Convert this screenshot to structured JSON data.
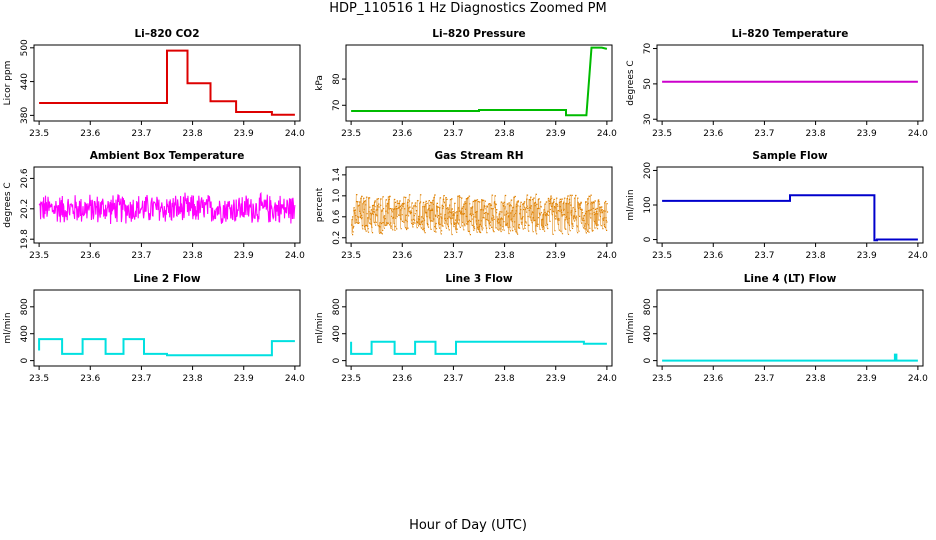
{
  "main_title": "HDP_110516  1 Hz Diagnostics Zoomed PM",
  "x_axis_title": "Hour of Day (UTC)",
  "chart_data": [
    {
      "type": "line",
      "title": "Li–820 CO2",
      "ylabel": "Licor ppm",
      "color": "#dd0000",
      "xlim": [
        23.49,
        24.01
      ],
      "ylim": [
        370,
        505
      ],
      "xticks": [
        "23.5",
        "23.6",
        "23.7",
        "23.8",
        "23.9",
        "24.0"
      ],
      "yticks": [
        "380",
        "440",
        "500"
      ],
      "series": [
        {
          "x": [
            23.5,
            23.75,
            23.75,
            23.79,
            23.79,
            23.835,
            23.835,
            23.885,
            23.885,
            23.955,
            23.955,
            24.0
          ],
          "y": [
            402,
            402,
            495,
            495,
            437,
            437,
            405,
            405,
            386,
            386,
            381,
            381
          ]
        }
      ]
    },
    {
      "type": "line",
      "title": "Li–820 Pressure",
      "ylabel": "kPa",
      "color": "#00bb00",
      "xlim": [
        23.49,
        24.01
      ],
      "ylim": [
        64,
        93
      ],
      "xticks": [
        "23.5",
        "23.6",
        "23.7",
        "23.8",
        "23.9",
        "24.0"
      ],
      "yticks": [
        "70",
        "80"
      ],
      "series": [
        {
          "x": [
            23.5,
            23.75,
            23.75,
            23.92,
            23.92,
            23.96,
            23.97,
            23.99,
            24.0
          ],
          "y": [
            67.8,
            67.8,
            68.2,
            68.2,
            66.2,
            66.2,
            92,
            92,
            91.5
          ]
        }
      ]
    },
    {
      "type": "line",
      "title": "Li–820 Temperature",
      "ylabel": "degrees C",
      "color": "#cc00cc",
      "xlim": [
        23.49,
        24.01
      ],
      "ylim": [
        29,
        72
      ],
      "xticks": [
        "23.5",
        "23.6",
        "23.7",
        "23.8",
        "23.9",
        "24.0"
      ],
      "yticks": [
        "30",
        "50",
        "70"
      ],
      "series": [
        {
          "x": [
            23.5,
            24.0
          ],
          "y": [
            51.2,
            51.2
          ]
        }
      ]
    },
    {
      "type": "line",
      "title": "Ambient Box Temperature",
      "ylabel": "degrees C",
      "color": "#ff00ff",
      "xlim": [
        23.49,
        24.01
      ],
      "ylim": [
        19.75,
        20.75
      ],
      "xticks": [
        "23.5",
        "23.6",
        "23.7",
        "23.8",
        "23.9",
        "24.0"
      ],
      "yticks": [
        "19.8",
        "20.2",
        "20.6"
      ],
      "noise": {
        "center": 20.2,
        "amplitude": 0.22,
        "points": 520
      },
      "series": []
    },
    {
      "type": "scatter",
      "title": "Gas Stream RH",
      "ylabel": "percent",
      "color": "#e08000",
      "xlim": [
        23.49,
        24.01
      ],
      "ylim": [
        0.1,
        1.55
      ],
      "xticks": [
        "23.5",
        "23.6",
        "23.7",
        "23.8",
        "23.9",
        "24.0"
      ],
      "yticks": [
        "0.2",
        "0.6",
        "1.0",
        "1.4"
      ],
      "noise": {
        "center": 0.65,
        "amplitude": 0.42,
        "points": 900
      },
      "series": []
    },
    {
      "type": "line",
      "title": "Sample Flow",
      "ylabel": "ml/min",
      "color": "#0000cc",
      "xlim": [
        23.49,
        24.01
      ],
      "ylim": [
        -10,
        210
      ],
      "xticks": [
        "23.5",
        "23.6",
        "23.7",
        "23.8",
        "23.9",
        "24.0"
      ],
      "yticks": [
        "0",
        "100",
        "200"
      ],
      "series": [
        {
          "x": [
            23.5,
            23.75,
            23.75,
            23.915,
            23.915,
            23.92,
            23.92,
            24.0
          ],
          "y": [
            112,
            112,
            128,
            128,
            -2,
            -2,
            0,
            0
          ]
        }
      ]
    },
    {
      "type": "line",
      "title": "Line 2 Flow",
      "ylabel": "ml/min",
      "color": "#00e0e0",
      "xlim": [
        23.49,
        24.01
      ],
      "ylim": [
        -80,
        1050
      ],
      "xticks": [
        "23.5",
        "23.6",
        "23.7",
        "23.8",
        "23.9",
        "24.0"
      ],
      "yticks": [
        "0",
        "400",
        "800"
      ],
      "series": [
        {
          "x": [
            23.5,
            23.5,
            23.545,
            23.545,
            23.585,
            23.585,
            23.63,
            23.63,
            23.665,
            23.665,
            23.705,
            23.705,
            23.75,
            23.75,
            23.955,
            23.955,
            24.0
          ],
          "y": [
            150,
            320,
            320,
            100,
            100,
            320,
            320,
            100,
            100,
            320,
            320,
            100,
            100,
            80,
            80,
            290,
            290
          ]
        }
      ]
    },
    {
      "type": "line",
      "title": "Line 3 Flow",
      "ylabel": "ml/min",
      "color": "#00e0e0",
      "xlim": [
        23.49,
        24.01
      ],
      "ylim": [
        -80,
        1050
      ],
      "xticks": [
        "23.5",
        "23.6",
        "23.7",
        "23.8",
        "23.9",
        "24.0"
      ],
      "yticks": [
        "0",
        "400",
        "800"
      ],
      "series": [
        {
          "x": [
            23.5,
            23.5,
            23.5,
            23.54,
            23.54,
            23.585,
            23.585,
            23.625,
            23.625,
            23.665,
            23.665,
            23.705,
            23.705,
            23.955,
            23.955,
            24.0
          ],
          "y": [
            280,
            150,
            100,
            100,
            280,
            280,
            100,
            100,
            280,
            280,
            100,
            100,
            280,
            280,
            250,
            250
          ]
        }
      ]
    },
    {
      "type": "line",
      "title": "Line 4 (LT) Flow",
      "ylabel": "ml/min",
      "color": "#00e0e0",
      "xlim": [
        23.49,
        24.01
      ],
      "ylim": [
        -80,
        1050
      ],
      "xticks": [
        "23.5",
        "23.6",
        "23.7",
        "23.8",
        "23.9",
        "24.0"
      ],
      "yticks": [
        "0",
        "400",
        "800"
      ],
      "series": [
        {
          "x": [
            23.5,
            23.955,
            23.955,
            23.958,
            23.958,
            24.0
          ],
          "y": [
            0,
            0,
            90,
            90,
            0,
            0
          ]
        }
      ]
    }
  ]
}
